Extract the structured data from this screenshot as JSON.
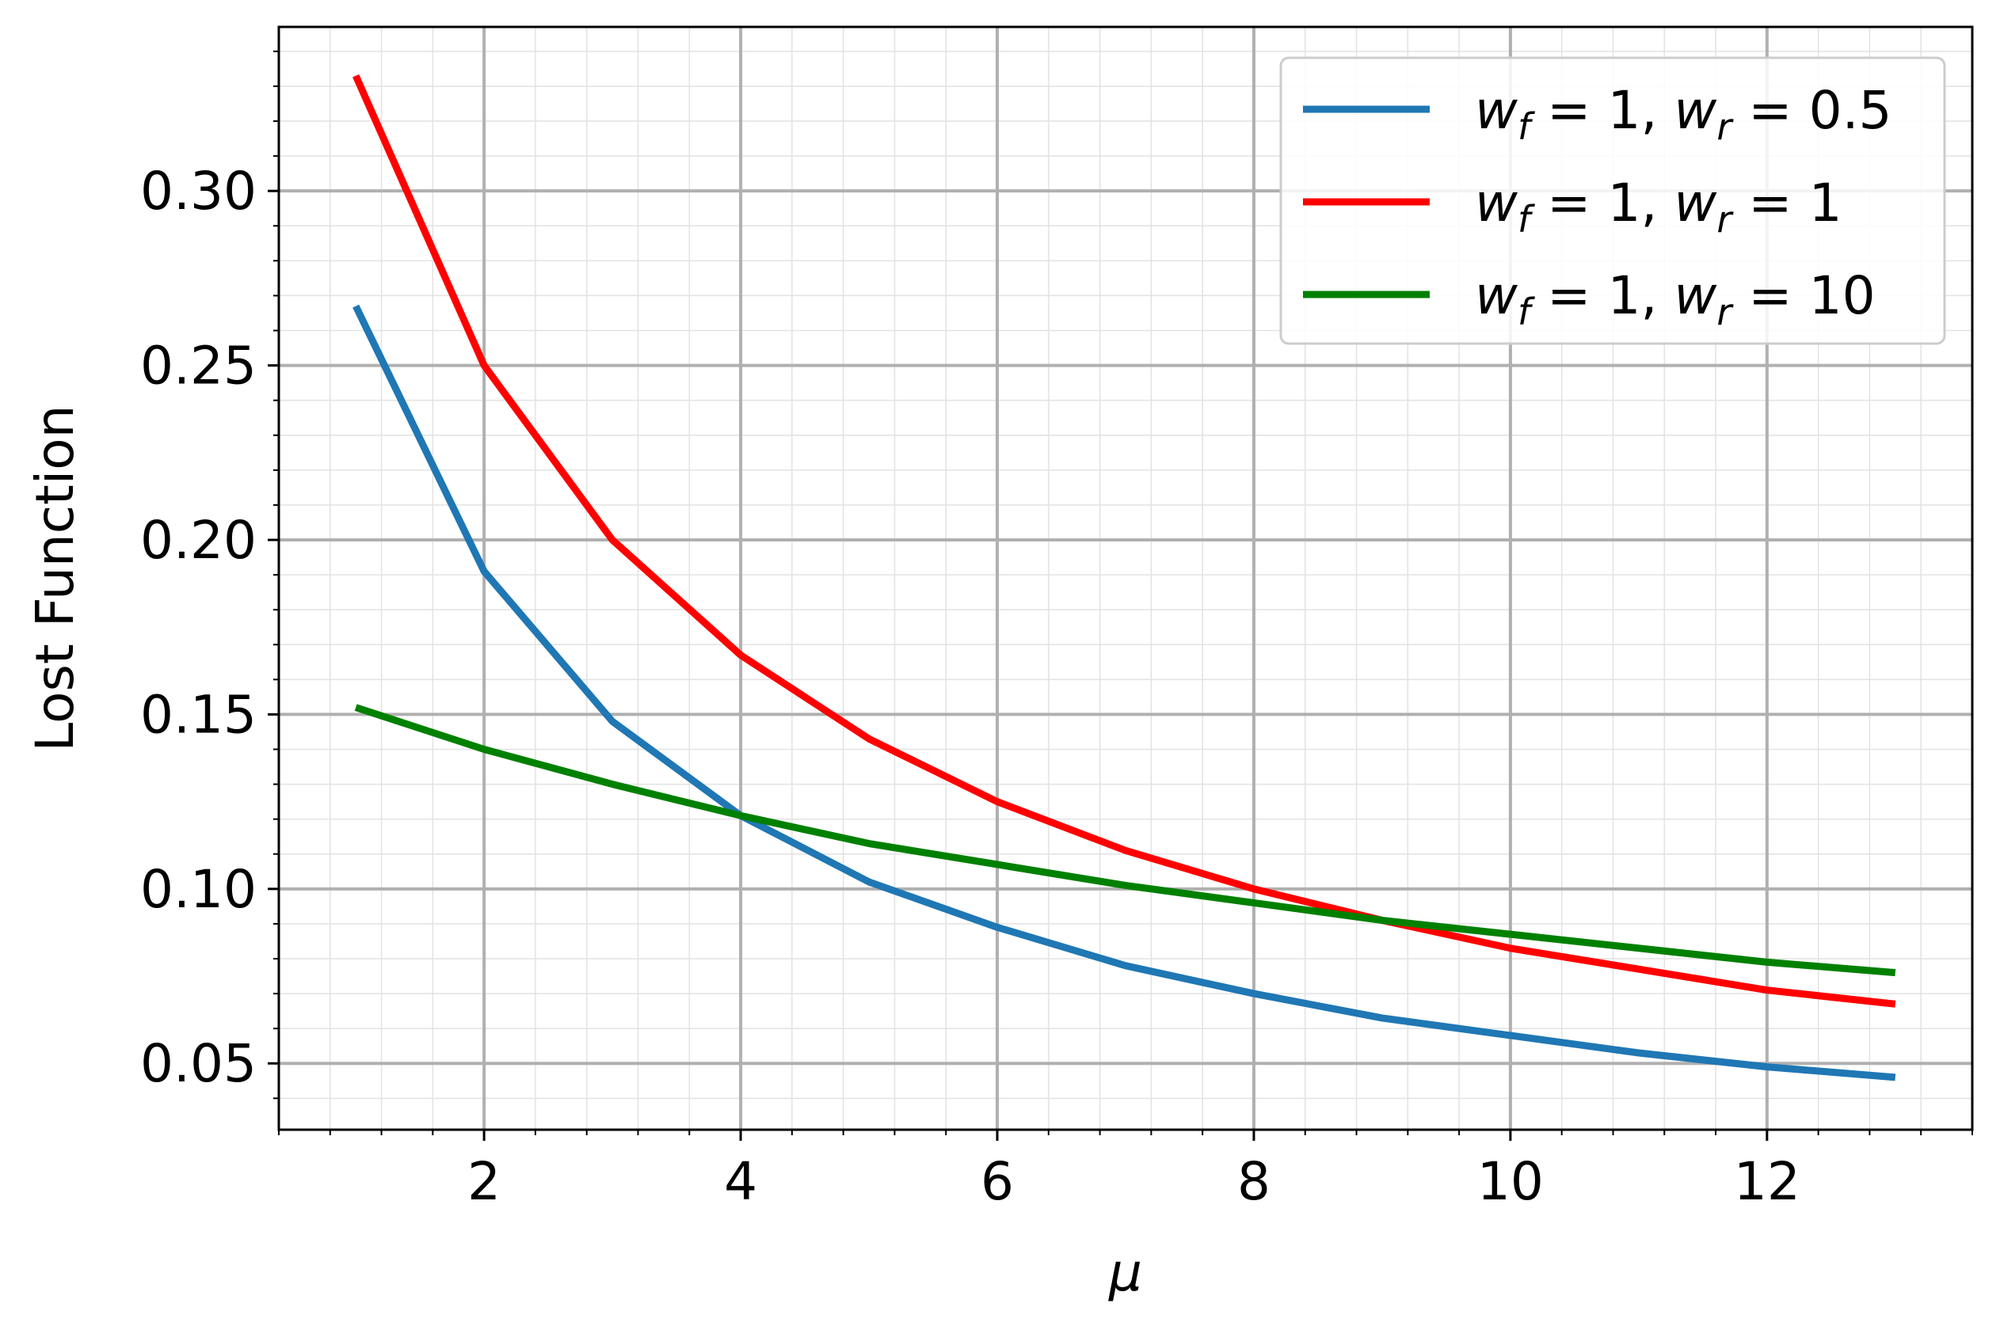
{
  "chart_data": {
    "type": "line",
    "xlabel": "μ",
    "ylabel": "Lost Function",
    "xlim": [
      0.4,
      13.6
    ],
    "ylim": [
      0.031,
      0.347
    ],
    "xticks": [
      2,
      4,
      6,
      8,
      10,
      12
    ],
    "xtick_labels": [
      "2",
      "4",
      "6",
      "8",
      "10",
      "12"
    ],
    "yticks": [
      0.05,
      0.1,
      0.15,
      0.2,
      0.25,
      0.3
    ],
    "ytick_labels": [
      "0.05",
      "0.10",
      "0.15",
      "0.20",
      "0.25",
      "0.30"
    ],
    "grid": true,
    "minor_grid": true,
    "legend_position": "top-right",
    "x": [
      1,
      2,
      3,
      4,
      5,
      6,
      7,
      8,
      9,
      10,
      11,
      12,
      13
    ],
    "series": [
      {
        "name": "w_f = 1, w_r = 0.5",
        "legend": {
          "w1": "w",
          "s1": "f",
          "eq1": " = 1, ",
          "w2": "w",
          "s2": "r",
          "eq2": " = 0.5"
        },
        "color": "#1f77b4",
        "values": [
          0.267,
          0.191,
          0.148,
          0.121,
          0.102,
          0.089,
          0.078,
          0.07,
          0.063,
          0.058,
          0.053,
          0.049,
          0.046
        ]
      },
      {
        "name": "w_f = 1, w_r = 1",
        "legend": {
          "w1": "w",
          "s1": "f",
          "eq1": " = 1, ",
          "w2": "w",
          "s2": "r",
          "eq2": " = 1"
        },
        "color": "#ff0000",
        "values": [
          0.333,
          0.25,
          0.2,
          0.167,
          0.143,
          0.125,
          0.111,
          0.1,
          0.091,
          0.083,
          0.077,
          0.071,
          0.067
        ]
      },
      {
        "name": "w_f = 1, w_r = 10",
        "legend": {
          "w1": "w",
          "s1": "f",
          "eq1": " = 1, ",
          "w2": "w",
          "s2": "r",
          "eq2": " = 10"
        },
        "color": "#008000",
        "values": [
          0.152,
          0.14,
          0.13,
          0.121,
          0.113,
          0.107,
          0.101,
          0.096,
          0.091,
          0.087,
          0.083,
          0.079,
          0.076
        ]
      }
    ]
  }
}
